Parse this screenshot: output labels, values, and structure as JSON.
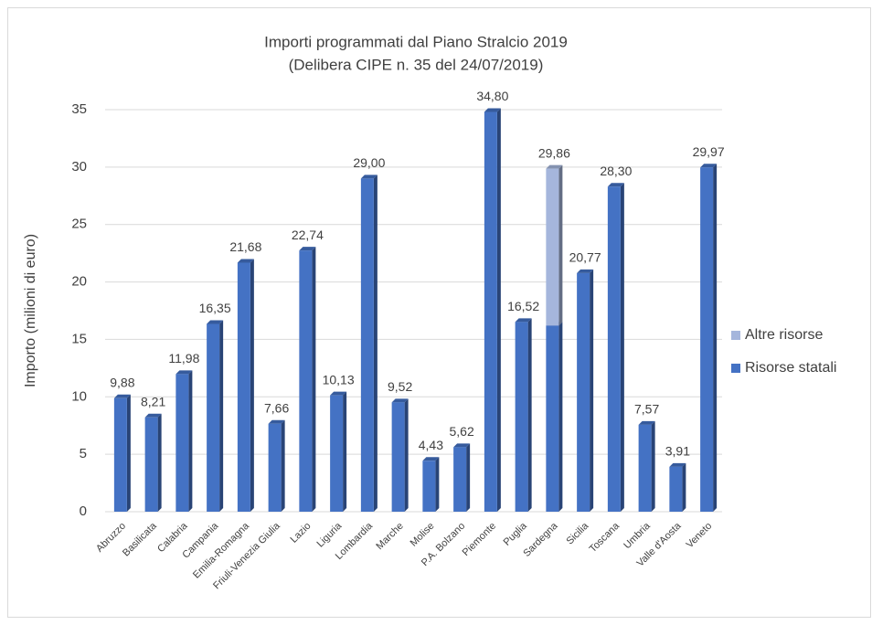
{
  "chart_data": {
    "type": "bar",
    "stacked": true,
    "title": "Importi programmati dal Piano Stralcio 2019",
    "subtitle": "(Delibera CIPE n. 35 del 24/07/2019)",
    "y_label": "Importo (milioni di euro)",
    "categories": [
      "Abruzzo",
      "Basilicata",
      "Calabria",
      "Campania",
      "Emilia-Romagna",
      "Friuli-Venezia Giulia",
      "Lazio",
      "Liguria",
      "Lombardia",
      "Marche",
      "Molise",
      "P.A. Bolzano",
      "Piemonte",
      "Puglia",
      "Sardegna",
      "Sicilia",
      "Toscana",
      "Umbria",
      "Valle d'Aosta",
      "Veneto"
    ],
    "series": [
      {
        "name": "Risorse statali",
        "color": "#4472c4",
        "values": [
          9.88,
          8.21,
          11.98,
          16.35,
          21.68,
          7.66,
          22.74,
          10.13,
          29.0,
          9.52,
          4.43,
          5.62,
          34.8,
          16.52,
          16.2,
          20.77,
          28.3,
          7.57,
          3.91,
          29.97
        ]
      },
      {
        "name": "Altre risorse",
        "color": "#a5b6dc",
        "values": [
          null,
          null,
          null,
          null,
          null,
          null,
          null,
          null,
          null,
          null,
          null,
          null,
          null,
          null,
          13.66,
          null,
          null,
          null,
          null,
          null
        ]
      }
    ],
    "totals": [
      9.88,
      8.21,
      11.98,
      16.35,
      21.68,
      7.66,
      22.74,
      10.13,
      29.0,
      9.52,
      4.43,
      5.62,
      34.8,
      16.52,
      29.86,
      20.77,
      28.3,
      7.57,
      3.91,
      29.97
    ],
    "total_labels": [
      "9,88",
      "8,21",
      "11,98",
      "16,35",
      "21,68",
      "7,66",
      "22,74",
      "10,13",
      "29,00",
      "9,52",
      "4,43",
      "5,62",
      "34,80",
      "16,52",
      "29,86",
      "20,77",
      "28,30",
      "7,57",
      "3,91",
      "29,97"
    ],
    "ylim": [
      0,
      35
    ],
    "yticks": [
      0,
      5,
      10,
      15,
      20,
      25,
      30,
      35
    ],
    "grid": true,
    "legend": "right"
  }
}
